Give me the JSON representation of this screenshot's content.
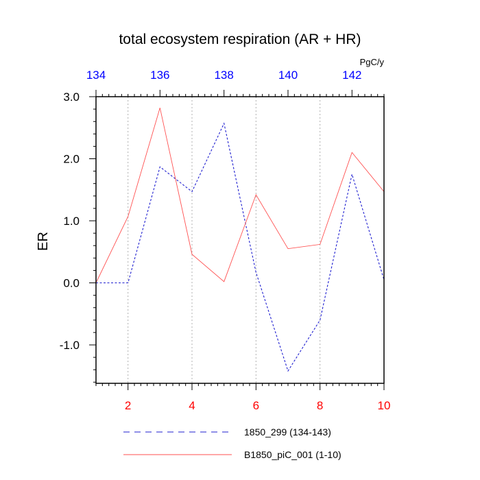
{
  "chart_data": {
    "type": "line",
    "title": "total ecosystem respiration (AR + HR)",
    "ylabel": "ER",
    "units": "PgC/y",
    "xlim": [
      1,
      10
    ],
    "top_xlim": [
      134,
      143
    ],
    "ylim": [
      -1.6,
      3.0
    ],
    "yticks": [
      3.0,
      2.0,
      1.0,
      0.0,
      -1.0
    ],
    "ytick_labels": [
      "3.0",
      "2.0",
      "1.0",
      "0.0",
      "-1.0"
    ],
    "bottom_xticks": [
      2,
      4,
      6,
      8,
      10
    ],
    "bottom_xtick_labels": [
      "2",
      "4",
      "6",
      "8",
      "10"
    ],
    "top_xticks": [
      134,
      136,
      138,
      140,
      142
    ],
    "top_xtick_labels": [
      "134",
      "136",
      "138",
      "140",
      "142"
    ],
    "grid": "vertical dotted at bottom x ticks",
    "colors": {
      "series_dashed": "#1f1fd0",
      "series_solid": "#ff5050",
      "top_axis_labels": "#0000ff",
      "bottom_axis_labels": "#ff0000",
      "grid": "#b0b0b0"
    },
    "series": [
      {
        "name": "1850_299 (134-143)",
        "axis": "top",
        "style": "dashed",
        "x": [
          134,
          135,
          136,
          137,
          138,
          139,
          140,
          141,
          142,
          143
        ],
        "y": [
          0.0,
          0.0,
          1.87,
          1.47,
          2.57,
          0.17,
          -1.42,
          -0.6,
          1.75,
          0.05
        ]
      },
      {
        "name": "B1850_piC_001 (1-10)",
        "axis": "bottom",
        "style": "solid",
        "x": [
          1,
          2,
          3,
          4,
          5,
          6,
          7,
          8,
          9,
          10
        ],
        "y": [
          0.0,
          1.07,
          2.82,
          0.46,
          0.02,
          1.42,
          0.55,
          0.62,
          2.1,
          1.47
        ]
      }
    ]
  }
}
